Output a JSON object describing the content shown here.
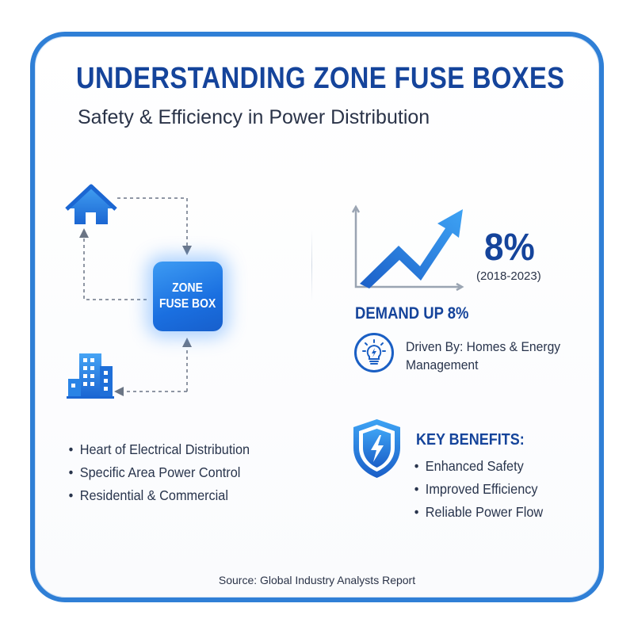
{
  "header": {
    "title": "UNDERSTANDING ZONE FUSE BOXES",
    "subtitle": "Safety & Efficiency in Power Distribution"
  },
  "diagram": {
    "fuse_box_line1": "ZONE",
    "fuse_box_line2": "FUSE BOX",
    "icons": [
      "house-icon",
      "building-icon"
    ]
  },
  "features": [
    "Heart of Electrical Distribution",
    "Specific Area Power Control",
    "Residential & Commercial"
  ],
  "growth": {
    "value": "8%",
    "period": "(2018-2023)",
    "headline": "DEMAND UP 8%",
    "driver": "Driven By: Homes & Energy Management"
  },
  "benefits": {
    "title": "KEY BENEFITS:",
    "items": [
      "Enhanced Safety",
      "Improved Efficiency",
      "Reliable Power Flow"
    ]
  },
  "footer": {
    "source": "Source: Global Industry Analysts Report"
  },
  "colors": {
    "primary": "#15449b",
    "accent": "#2f7fd6",
    "text": "#28344c"
  }
}
